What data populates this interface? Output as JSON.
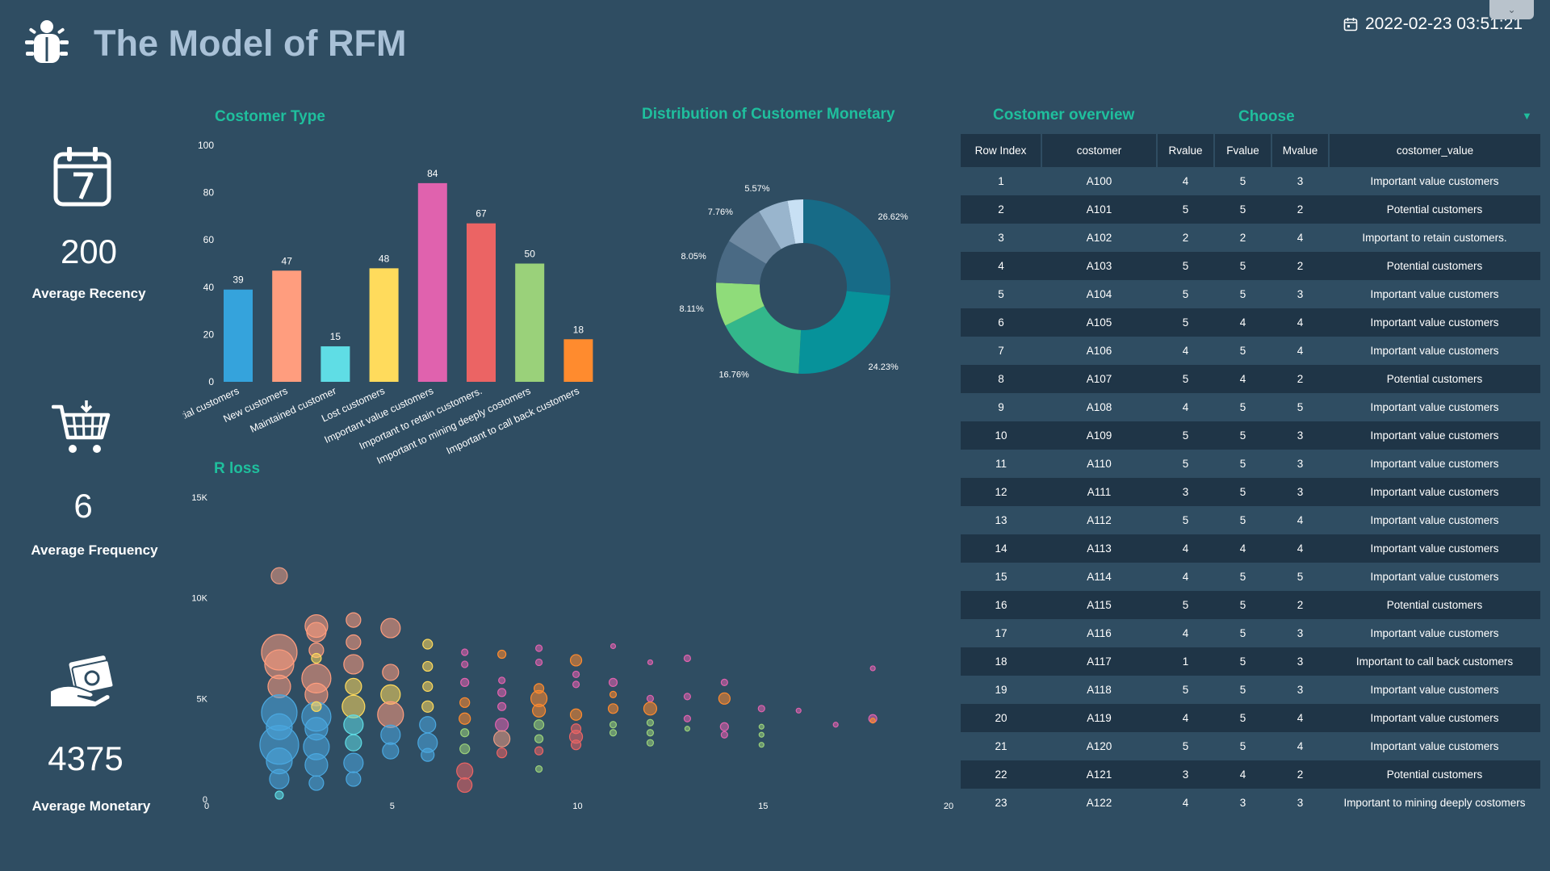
{
  "header": {
    "title": "The Model of RFM",
    "datetime": "2022-02-23 03:51:21",
    "logo_icon": "bug-icon",
    "calendar_icon": "calendar-icon"
  },
  "kpis": [
    {
      "value": "200",
      "label": "Average Recency",
      "icon": "calendar-7-icon"
    },
    {
      "value": "6",
      "label": "Average Frequency",
      "icon": "shopping-cart-icon"
    },
    {
      "value": "4375",
      "label": "Average Monetary",
      "icon": "cash-hand-icon"
    }
  ],
  "sections": {
    "customer_type": "Costomer Type",
    "distribution": "Distribution of Customer Monetary",
    "r_loss": "R loss",
    "overview": "Costomer overview"
  },
  "filter": {
    "label": "Choose"
  },
  "chart_data": [
    {
      "type": "bar",
      "title": "Costomer Type",
      "categories": [
        "Potential customers",
        "New customers",
        "Maintained customer",
        "Lost customers",
        "Important value customers",
        "Important to retain customers.",
        "Important to mining deeply costomers",
        "Important to call back customers"
      ],
      "values": [
        39,
        47,
        15,
        48,
        84,
        67,
        50,
        18
      ],
      "colors": [
        "#35a3dc",
        "#ff9d7e",
        "#5fdde5",
        "#ffdb5c",
        "#e062ae",
        "#eb6464",
        "#9ad17a",
        "#ff8b2e"
      ],
      "ylim": [
        0,
        100
      ],
      "yticks": [
        "0",
        "20",
        "40",
        "60",
        "80",
        "100"
      ]
    },
    {
      "type": "pie",
      "title": "Distribution of Customer Monetary",
      "values": [
        26.62,
        24.23,
        16.76,
        8.11,
        8.05,
        7.76,
        5.57,
        2.9
      ],
      "labels": [
        "26.62%",
        "24.23%",
        "16.76%",
        "8.11%",
        "8.05%",
        "7.76%",
        "5.57%",
        ""
      ],
      "colors": [
        "#176b87",
        "#07929a",
        "#33b78b",
        "#8fdc7a",
        "#4a6a84",
        "#6f8aa2",
        "#99b5cd",
        "#c8e0f4"
      ]
    },
    {
      "type": "scatter",
      "title": "R loss",
      "xlim": [
        0,
        20
      ],
      "ylim": [
        0,
        15000
      ],
      "xticks": [
        "0",
        "5",
        "10",
        "15",
        "20"
      ],
      "yticks": [
        "0",
        "5K",
        "10K",
        "15K"
      ],
      "points": [
        [
          1,
          11100,
          10,
          "#eb9a82"
        ],
        [
          1,
          7300,
          22,
          "#ff9d7e"
        ],
        [
          1,
          6700,
          18,
          "#ff9d7e"
        ],
        [
          1,
          5600,
          14,
          "#ff9d7e"
        ],
        [
          1,
          4300,
          22,
          "#4aa8e0"
        ],
        [
          1,
          3600,
          16,
          "#4aa8e0"
        ],
        [
          1,
          2700,
          24,
          "#4aa8e0"
        ],
        [
          1,
          1900,
          16,
          "#4aa8e0"
        ],
        [
          1,
          1000,
          12,
          "#4aa8e0"
        ],
        [
          1,
          200,
          5,
          "#5fdde5"
        ],
        [
          2,
          8600,
          14,
          "#ff9d7e"
        ],
        [
          2,
          8300,
          12,
          "#ff9d7e"
        ],
        [
          2,
          7400,
          9,
          "#ff9d7e"
        ],
        [
          2,
          6000,
          18,
          "#ff9d7e"
        ],
        [
          2,
          5200,
          14,
          "#ff9d7e"
        ],
        [
          2,
          4100,
          18,
          "#4aa8e0"
        ],
        [
          2,
          3500,
          14,
          "#4aa8e0"
        ],
        [
          2,
          2600,
          16,
          "#4aa8e0"
        ],
        [
          2,
          1700,
          14,
          "#4aa8e0"
        ],
        [
          2,
          800,
          9,
          "#4aa8e0"
        ],
        [
          2,
          7000,
          6,
          "#ffdb5c"
        ],
        [
          2,
          4600,
          6,
          "#ffdb5c"
        ],
        [
          3,
          8900,
          9,
          "#ff9d7e"
        ],
        [
          3,
          7800,
          9,
          "#ff9d7e"
        ],
        [
          3,
          6700,
          12,
          "#ff9d7e"
        ],
        [
          3,
          5600,
          10,
          "#ffdb5c"
        ],
        [
          3,
          4600,
          14,
          "#ffdb5c"
        ],
        [
          3,
          3700,
          12,
          "#5fdde5"
        ],
        [
          3,
          2800,
          10,
          "#5fdde5"
        ],
        [
          3,
          1800,
          12,
          "#4aa8e0"
        ],
        [
          3,
          1000,
          9,
          "#4aa8e0"
        ],
        [
          4,
          8500,
          12,
          "#ff9d7e"
        ],
        [
          4,
          6300,
          10,
          "#ff9d7e"
        ],
        [
          4,
          5200,
          12,
          "#ffdb5c"
        ],
        [
          4,
          4200,
          16,
          "#ff9d7e"
        ],
        [
          4,
          3200,
          12,
          "#4aa8e0"
        ],
        [
          4,
          2400,
          10,
          "#4aa8e0"
        ],
        [
          5,
          7700,
          6,
          "#ffdb5c"
        ],
        [
          5,
          6600,
          6,
          "#ffdb5c"
        ],
        [
          5,
          5600,
          6,
          "#ffdb5c"
        ],
        [
          5,
          4600,
          7,
          "#ffdb5c"
        ],
        [
          5,
          3700,
          10,
          "#4aa8e0"
        ],
        [
          5,
          2800,
          12,
          "#4aa8e0"
        ],
        [
          5,
          2200,
          8,
          "#4aa8e0"
        ],
        [
          6,
          7300,
          4,
          "#e062ae"
        ],
        [
          6,
          6700,
          4,
          "#e062ae"
        ],
        [
          6,
          5800,
          5,
          "#e062ae"
        ],
        [
          6,
          4800,
          6,
          "#ff8b2e"
        ],
        [
          6,
          4000,
          7,
          "#ff8b2e"
        ],
        [
          6,
          3300,
          5,
          "#9ad17a"
        ],
        [
          6,
          2500,
          6,
          "#9ad17a"
        ],
        [
          6,
          1400,
          10,
          "#eb6464"
        ],
        [
          6,
          700,
          9,
          "#eb6464"
        ],
        [
          7,
          7200,
          5,
          "#ff8b2e"
        ],
        [
          7,
          5900,
          4,
          "#e062ae"
        ],
        [
          7,
          5300,
          5,
          "#e062ae"
        ],
        [
          7,
          4600,
          5,
          "#e062ae"
        ],
        [
          7,
          3700,
          8,
          "#e062ae"
        ],
        [
          7,
          3000,
          10,
          "#eb9a82"
        ],
        [
          7,
          2300,
          6,
          "#eb6464"
        ],
        [
          8,
          7500,
          4,
          "#e062ae"
        ],
        [
          8,
          6800,
          4,
          "#e062ae"
        ],
        [
          8,
          5500,
          6,
          "#ff8b2e"
        ],
        [
          8,
          5000,
          10,
          "#ff8b2e"
        ],
        [
          8,
          4400,
          8,
          "#ff8b2e"
        ],
        [
          8,
          3700,
          6,
          "#9ad17a"
        ],
        [
          8,
          3000,
          5,
          "#9ad17a"
        ],
        [
          8,
          2400,
          5,
          "#eb6464"
        ],
        [
          8,
          1500,
          4,
          "#9ad17a"
        ],
        [
          9,
          6900,
          7,
          "#ff8b2e"
        ],
        [
          9,
          6200,
          4,
          "#e062ae"
        ],
        [
          9,
          5700,
          4,
          "#e062ae"
        ],
        [
          9,
          4200,
          7,
          "#ff8b2e"
        ],
        [
          9,
          3500,
          6,
          "#eb6464"
        ],
        [
          9,
          3100,
          8,
          "#eb6464"
        ],
        [
          9,
          2700,
          6,
          "#eb6464"
        ],
        [
          10,
          7600,
          3,
          "#e062ae"
        ],
        [
          10,
          5800,
          5,
          "#e062ae"
        ],
        [
          10,
          5200,
          4,
          "#ff8b2e"
        ],
        [
          10,
          4500,
          6,
          "#ff8b2e"
        ],
        [
          10,
          3700,
          4,
          "#9ad17a"
        ],
        [
          10,
          3300,
          4,
          "#9ad17a"
        ],
        [
          11,
          6800,
          3,
          "#e062ae"
        ],
        [
          11,
          5000,
          4,
          "#e062ae"
        ],
        [
          11,
          4500,
          8,
          "#ff8b2e"
        ],
        [
          11,
          3800,
          4,
          "#9ad17a"
        ],
        [
          11,
          3300,
          4,
          "#9ad17a"
        ],
        [
          11,
          2800,
          4,
          "#9ad17a"
        ],
        [
          12,
          7000,
          4,
          "#e062ae"
        ],
        [
          12,
          5100,
          4,
          "#e062ae"
        ],
        [
          12,
          4000,
          4,
          "#e062ae"
        ],
        [
          12,
          3500,
          3,
          "#9ad17a"
        ],
        [
          13,
          5800,
          4,
          "#e062ae"
        ],
        [
          13,
          5000,
          7,
          "#ff8b2e"
        ],
        [
          13,
          3600,
          5,
          "#e062ae"
        ],
        [
          13,
          3200,
          4,
          "#e062ae"
        ],
        [
          14,
          4500,
          4,
          "#e062ae"
        ],
        [
          14,
          3600,
          3,
          "#9ad17a"
        ],
        [
          14,
          3200,
          3,
          "#9ad17a"
        ],
        [
          14,
          2700,
          3,
          "#9ad17a"
        ],
        [
          15,
          4400,
          3,
          "#e062ae"
        ],
        [
          16,
          3700,
          3,
          "#e062ae"
        ],
        [
          17,
          6500,
          3,
          "#e062ae"
        ],
        [
          17,
          4000,
          5,
          "#e062ae"
        ],
        [
          17,
          3900,
          3,
          "#ff8b2e"
        ]
      ]
    }
  ],
  "table": {
    "columns": [
      "Row Index",
      "costomer",
      "Rvalue",
      "Fvalue",
      "Mvalue",
      "costomer_value"
    ],
    "rows": [
      [
        "1",
        "A100",
        "4",
        "5",
        "3",
        "Important value customers"
      ],
      [
        "2",
        "A101",
        "5",
        "5",
        "2",
        "Potential customers"
      ],
      [
        "3",
        "A102",
        "2",
        "2",
        "4",
        "Important to retain customers."
      ],
      [
        "4",
        "A103",
        "5",
        "5",
        "2",
        "Potential customers"
      ],
      [
        "5",
        "A104",
        "5",
        "5",
        "3",
        "Important value customers"
      ],
      [
        "6",
        "A105",
        "5",
        "4",
        "4",
        "Important value customers"
      ],
      [
        "7",
        "A106",
        "4",
        "5",
        "4",
        "Important value customers"
      ],
      [
        "8",
        "A107",
        "5",
        "4",
        "2",
        "Potential customers"
      ],
      [
        "9",
        "A108",
        "4",
        "5",
        "5",
        "Important value customers"
      ],
      [
        "10",
        "A109",
        "5",
        "5",
        "3",
        "Important value customers"
      ],
      [
        "11",
        "A110",
        "5",
        "5",
        "3",
        "Important value customers"
      ],
      [
        "12",
        "A111",
        "3",
        "5",
        "3",
        "Important value customers"
      ],
      [
        "13",
        "A112",
        "5",
        "5",
        "4",
        "Important value customers"
      ],
      [
        "14",
        "A113",
        "4",
        "4",
        "4",
        "Important value customers"
      ],
      [
        "15",
        "A114",
        "4",
        "5",
        "5",
        "Important value customers"
      ],
      [
        "16",
        "A115",
        "5",
        "5",
        "2",
        "Potential customers"
      ],
      [
        "17",
        "A116",
        "4",
        "5",
        "3",
        "Important value customers"
      ],
      [
        "18",
        "A117",
        "1",
        "5",
        "3",
        "Important to call back customers"
      ],
      [
        "19",
        "A118",
        "5",
        "5",
        "3",
        "Important value customers"
      ],
      [
        "20",
        "A119",
        "4",
        "5",
        "4",
        "Important value customers"
      ],
      [
        "21",
        "A120",
        "5",
        "5",
        "4",
        "Important value customers"
      ],
      [
        "22",
        "A121",
        "3",
        "4",
        "2",
        "Potential customers"
      ],
      [
        "23",
        "A122",
        "4",
        "3",
        "3",
        "Important to mining deeply costomers"
      ]
    ]
  }
}
